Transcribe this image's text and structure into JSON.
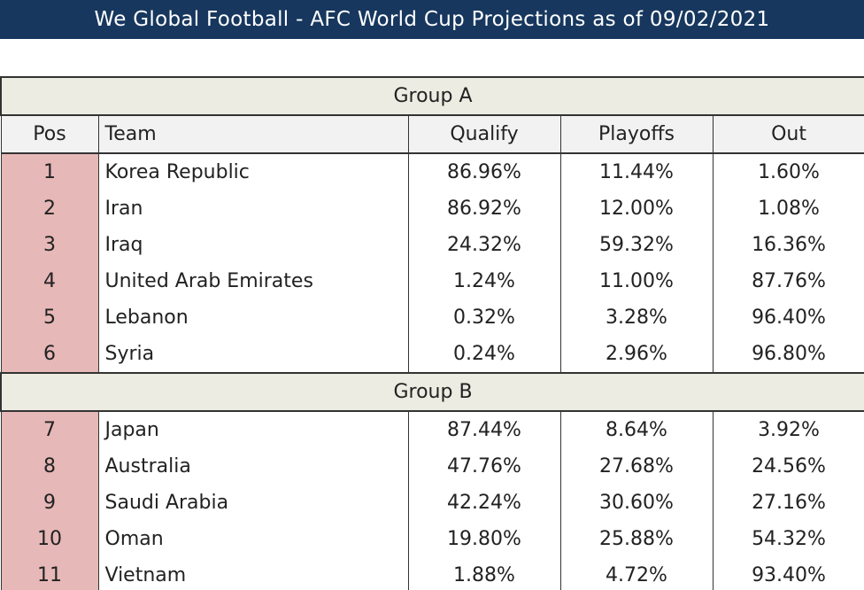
{
  "header": {
    "title": "We Global Football - AFC World Cup Projections as of 09/02/2021"
  },
  "table": {
    "columns": [
      "Pos",
      "Team",
      "Qualify",
      "Playoffs",
      "Out"
    ],
    "groups": [
      {
        "name": "Group A",
        "rows": [
          [
            "1",
            "Korea Republic",
            "86.96%",
            "11.44%",
            "1.60%"
          ],
          [
            "2",
            "Iran",
            "86.92%",
            "12.00%",
            "1.08%"
          ],
          [
            "3",
            "Iraq",
            "24.32%",
            "59.32%",
            "16.36%"
          ],
          [
            "4",
            "United Arab Emirates",
            "1.24%",
            "11.00%",
            "87.76%"
          ],
          [
            "5",
            "Lebanon",
            "0.32%",
            "3.28%",
            "96.40%"
          ],
          [
            "6",
            "Syria",
            "0.24%",
            "2.96%",
            "96.80%"
          ]
        ]
      },
      {
        "name": "Group B",
        "rows": [
          [
            "7",
            "Japan",
            "87.44%",
            "8.64%",
            "3.92%"
          ],
          [
            "8",
            "Australia",
            "47.76%",
            "27.68%",
            "24.56%"
          ],
          [
            "9",
            "Saudi Arabia",
            "42.24%",
            "30.60%",
            "27.16%"
          ],
          [
            "10",
            "Oman",
            "19.80%",
            "25.88%",
            "54.32%"
          ],
          [
            "11",
            "Vietnam",
            "1.88%",
            "4.72%",
            "93.40%"
          ]
        ]
      }
    ]
  }
}
